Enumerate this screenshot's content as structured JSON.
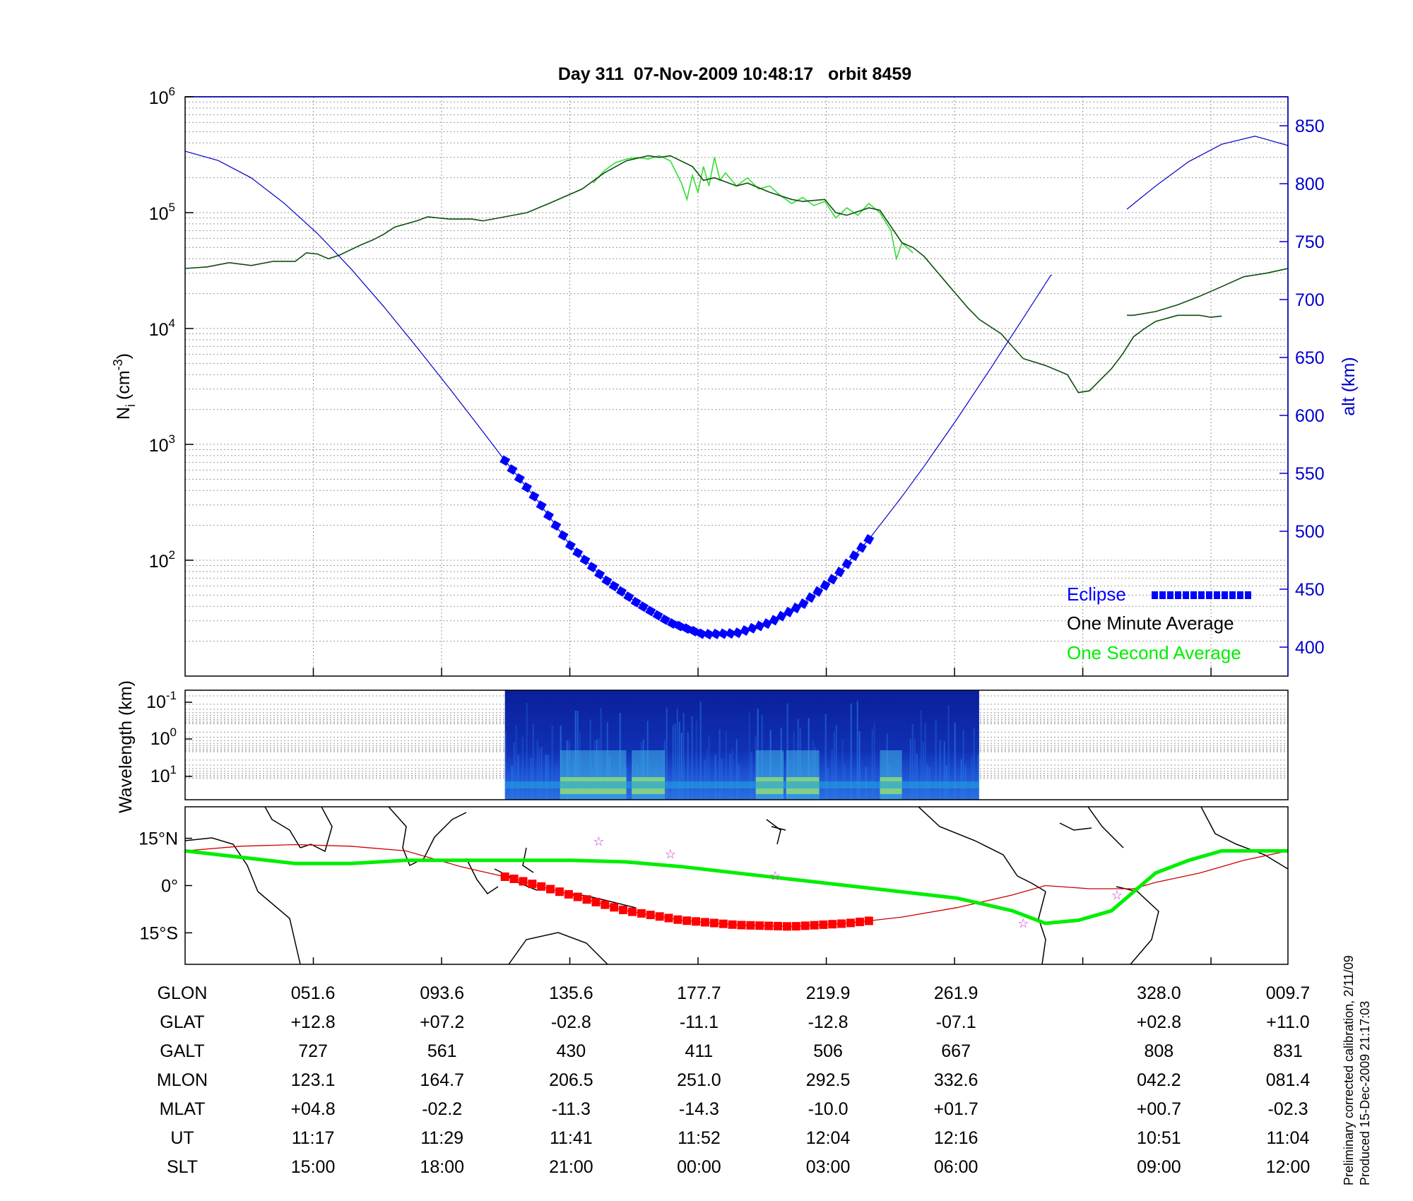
{
  "title": "Day 311  07-Nov-2009 10:48:17   orbit 8459",
  "colors": {
    "altitude": "#0000cc",
    "density_minute": "#0d4d0d",
    "density_second": "#33dd33",
    "eclipse": "#0000ff",
    "track": "#00ee00",
    "track_eclipse": "#ff0000",
    "track_line": "#cc0000",
    "stars": "#cc33cc"
  },
  "chart_data": [
    {
      "type": "line",
      "panel": "density_altitude",
      "ylabel_left": "N",
      "ylabel_left_sub": "i",
      "ylabel_left_unit": "(cm",
      "ylabel_left_unit_sup": "-3",
      "ylabel_left_unit_end": ")",
      "left_axis_scale": "log",
      "left_ylim": [
        10,
        1000000
      ],
      "left_ticks": [
        {
          "base": "10",
          "exp": "2",
          "value": 100
        },
        {
          "base": "10",
          "exp": "3",
          "value": 1000
        },
        {
          "base": "10",
          "exp": "4",
          "value": 10000
        },
        {
          "base": "10",
          "exp": "5",
          "value": 100000
        },
        {
          "base": "10",
          "exp": "6",
          "value": 1000000
        }
      ],
      "ylabel_right": "alt (km)",
      "right_ylim": [
        375,
        875
      ],
      "right_ticks": [
        400,
        450,
        500,
        550,
        600,
        650,
        700,
        750,
        800,
        850
      ],
      "xlim": [
        0,
        1
      ],
      "grid": true,
      "legend_position": "bottom-right",
      "legend": [
        {
          "label": "Eclipse",
          "color": "#0000ff"
        },
        {
          "label": "One Minute Average",
          "color": "#000000"
        },
        {
          "label": "One Second Average",
          "color": "#00ee00"
        }
      ],
      "series": [
        {
          "name": "alt (km)",
          "axis": "right",
          "segments": [
            [
              [
                0,
                828
              ],
              [
                0.03,
                820
              ],
              [
                0.06,
                805
              ],
              [
                0.09,
                783
              ],
              [
                0.12,
                757
              ],
              [
                0.15,
                727
              ],
              [
                0.18,
                694
              ],
              [
                0.21,
                659
              ],
              [
                0.24,
                623
              ],
              [
                0.27,
                586
              ],
              [
                0.29,
                561
              ],
              [
                0.32,
                526
              ],
              [
                0.35,
                487
              ],
              [
                0.38,
                459
              ],
              [
                0.41,
                438
              ],
              [
                0.44,
                421
              ],
              [
                0.47,
                411
              ],
              [
                0.5,
                412
              ],
              [
                0.53,
                421
              ],
              [
                0.56,
                437
              ],
              [
                0.59,
                461
              ],
              [
                0.62,
                493
              ],
              [
                0.65,
                530
              ],
              [
                0.67,
                556
              ],
              [
                0.7,
                597
              ],
              [
                0.73,
                640
              ],
              [
                0.76,
                684
              ],
              [
                0.785,
                721
              ],
              [
                0.786,
                721
              ]
            ],
            [
              [
                0.854,
                778
              ],
              [
                0.88,
                798
              ],
              [
                0.91,
                819
              ],
              [
                0.94,
                834
              ],
              [
                0.97,
                841
              ],
              [
                1.0,
                833
              ]
            ]
          ]
        },
        {
          "name": "One Minute Average",
          "axis": "left",
          "segments": [
            [
              [
                0,
                33000
              ],
              [
                0.02,
                34000
              ],
              [
                0.04,
                37000
              ],
              [
                0.06,
                35000
              ],
              [
                0.08,
                38000
              ],
              [
                0.1,
                38000
              ],
              [
                0.11,
                45000
              ],
              [
                0.12,
                44000
              ],
              [
                0.13,
                40000
              ],
              [
                0.14,
                43000
              ],
              [
                0.16,
                53000
              ],
              [
                0.17,
                58000
              ],
              [
                0.18,
                65000
              ],
              [
                0.19,
                75000
              ],
              [
                0.21,
                85000
              ],
              [
                0.22,
                92000
              ],
              [
                0.24,
                88000
              ],
              [
                0.26,
                88000
              ],
              [
                0.27,
                85000
              ],
              [
                0.29,
                92000
              ],
              [
                0.31,
                100000
              ],
              [
                0.33,
                120000
              ],
              [
                0.36,
                160000
              ],
              [
                0.38,
                220000
              ],
              [
                0.4,
                280000
              ],
              [
                0.42,
                310000
              ],
              [
                0.43,
                300000
              ],
              [
                0.44,
                310000
              ],
              [
                0.46,
                250000
              ],
              [
                0.47,
                190000
              ],
              [
                0.48,
                200000
              ],
              [
                0.5,
                170000
              ],
              [
                0.51,
                180000
              ],
              [
                0.53,
                150000
              ],
              [
                0.55,
                130000
              ],
              [
                0.56,
                125000
              ],
              [
                0.58,
                130000
              ],
              [
                0.59,
                100000
              ],
              [
                0.6,
                95000
              ],
              [
                0.62,
                110000
              ],
              [
                0.63,
                105000
              ],
              [
                0.65,
                55000
              ],
              [
                0.66,
                50000
              ],
              [
                0.67,
                42000
              ],
              [
                0.69,
                25000
              ],
              [
                0.71,
                15000
              ],
              [
                0.72,
                12000
              ],
              [
                0.74,
                9000
              ],
              [
                0.75,
                7000
              ],
              [
                0.76,
                5500
              ],
              [
                0.78,
                4800
              ],
              [
                0.8,
                4000
              ],
              [
                0.81,
                2800
              ],
              [
                0.82,
                2900
              ],
              [
                0.84,
                4500
              ],
              [
                0.85,
                6000
              ],
              [
                0.86,
                8500
              ],
              [
                0.87,
                10000
              ],
              [
                0.88,
                11500
              ],
              [
                0.9,
                13000
              ],
              [
                0.92,
                13000
              ],
              [
                0.93,
                12500
              ],
              [
                0.94,
                12800
              ]
            ],
            [
              [
                0.854,
                13000
              ],
              [
                0.86,
                13000
              ],
              [
                0.88,
                14000
              ],
              [
                0.9,
                16000
              ],
              [
                0.92,
                19000
              ],
              [
                0.94,
                23000
              ],
              [
                0.96,
                28000
              ],
              [
                0.98,
                30000
              ],
              [
                1.0,
                33000
              ]
            ]
          ]
        },
        {
          "name": "One Second Average",
          "axis": "left",
          "segments": [
            [
              [
                0.37,
                180000
              ],
              [
                0.38,
                230000
              ],
              [
                0.39,
                270000
              ],
              [
                0.4,
                290000
              ],
              [
                0.41,
                300000
              ],
              [
                0.42,
                290000
              ],
              [
                0.43,
                310000
              ],
              [
                0.44,
                280000
              ],
              [
                0.45,
                180000
              ],
              [
                0.455,
                130000
              ],
              [
                0.46,
                210000
              ],
              [
                0.465,
                150000
              ],
              [
                0.47,
                250000
              ],
              [
                0.475,
                170000
              ],
              [
                0.48,
                300000
              ],
              [
                0.485,
                190000
              ],
              [
                0.49,
                220000
              ],
              [
                0.5,
                170000
              ],
              [
                0.51,
                200000
              ],
              [
                0.52,
                160000
              ],
              [
                0.53,
                170000
              ],
              [
                0.54,
                140000
              ],
              [
                0.55,
                120000
              ],
              [
                0.56,
                135000
              ],
              [
                0.57,
                115000
              ],
              [
                0.58,
                125000
              ],
              [
                0.59,
                90000
              ],
              [
                0.6,
                110000
              ],
              [
                0.61,
                95000
              ],
              [
                0.62,
                120000
              ],
              [
                0.63,
                100000
              ],
              [
                0.64,
                70000
              ],
              [
                0.645,
                40000
              ],
              [
                0.65,
                55000
              ],
              [
                0.66,
                45000
              ]
            ]
          ]
        }
      ],
      "eclipse": {
        "x_start": 0.29,
        "x_end": 0.62
      }
    },
    {
      "type": "heatmap",
      "panel": "wavelength_spectrogram",
      "ylabel": "Wavelength (km)",
      "y_scale": "log",
      "yticks": [
        {
          "base": "10",
          "exp": "-1"
        },
        {
          "base": "10",
          "exp": "0"
        },
        {
          "base": "10",
          "exp": "1"
        }
      ],
      "x_start": 0.29,
      "x_end": 0.72
    },
    {
      "type": "line",
      "panel": "ground_track_map",
      "ytick_labels": [
        "15°N",
        "0°",
        "15°S"
      ],
      "yticks": [
        15,
        0,
        -15
      ],
      "ylim": [
        -25,
        25
      ],
      "series": [
        {
          "name": "ground track",
          "points": [
            [
              0,
              11
            ],
            [
              0.05,
              9
            ],
            [
              0.1,
              7
            ],
            [
              0.15,
              7
            ],
            [
              0.2,
              8
            ],
            [
              0.25,
              8
            ],
            [
              0.3,
              8
            ],
            [
              0.35,
              8
            ],
            [
              0.4,
              7.5
            ],
            [
              0.45,
              6
            ],
            [
              0.5,
              4
            ],
            [
              0.55,
              2
            ],
            [
              0.6,
              0
            ],
            [
              0.65,
              -2
            ],
            [
              0.7,
              -4
            ],
            [
              0.75,
              -8
            ],
            [
              0.78,
              -12
            ],
            [
              0.81,
              -11
            ],
            [
              0.84,
              -8
            ],
            [
              0.86,
              -2
            ],
            [
              0.88,
              4
            ],
            [
              0.91,
              8
            ],
            [
              0.94,
              11
            ],
            [
              0.97,
              11
            ],
            [
              1.0,
              11
            ]
          ]
        },
        {
          "name": "subsatellite path",
          "points": [
            [
              0,
              11
            ],
            [
              0.05,
              12.5
            ],
            [
              0.1,
              13
            ],
            [
              0.15,
              12.5
            ],
            [
              0.2,
              11
            ],
            [
              0.25,
              6
            ],
            [
              0.3,
              2
            ],
            [
              0.35,
              -3
            ],
            [
              0.4,
              -8
            ],
            [
              0.45,
              -11
            ],
            [
              0.5,
              -12.5
            ],
            [
              0.55,
              -13
            ],
            [
              0.6,
              -12
            ],
            [
              0.65,
              -10
            ],
            [
              0.7,
              -7
            ],
            [
              0.75,
              -3
            ],
            [
              0.78,
              0
            ],
            [
              0.82,
              -1
            ],
            [
              0.86,
              -1
            ],
            [
              0.88,
              1
            ],
            [
              0.92,
              4
            ],
            [
              0.96,
              8
            ],
            [
              1.0,
              11
            ]
          ]
        }
      ],
      "stars": [
        [
          0.375,
          14
        ],
        [
          0.44,
          10
        ],
        [
          0.535,
          3
        ],
        [
          0.76,
          -12
        ],
        [
          0.845,
          -3
        ]
      ]
    },
    {
      "type": "table",
      "panel": "orbit_positions",
      "row_labels": [
        "GLON",
        "GLAT",
        "GALT",
        "MLON",
        "MLAT",
        "UT",
        "SLT"
      ],
      "columns": [
        {
          "x": 0.116,
          "values": [
            "051.6",
            "+12.8",
            "727",
            "123.1",
            "+04.8",
            "11:17",
            "15:00"
          ]
        },
        {
          "x": 0.233,
          "values": [
            "093.6",
            "+07.2",
            "561",
            "164.7",
            "-02.2",
            "11:29",
            "18:00"
          ]
        },
        {
          "x": 0.35,
          "values": [
            "135.6",
            "-02.8",
            "430",
            "206.5",
            "-11.3",
            "11:41",
            "21:00"
          ]
        },
        {
          "x": 0.466,
          "values": [
            "177.7",
            "-11.1",
            "411",
            "251.0",
            "-14.3",
            "11:52",
            "00:00"
          ]
        },
        {
          "x": 0.583,
          "values": [
            "219.9",
            "-12.8",
            "506",
            "292.5",
            "-10.0",
            "12:04",
            "03:00"
          ]
        },
        {
          "x": 0.699,
          "values": [
            "261.9",
            "-07.1",
            "667",
            "332.6",
            "+01.7",
            "12:16",
            "06:00"
          ]
        },
        {
          "x": 0.883,
          "values": [
            "328.0",
            "+02.8",
            "808",
            "042.2",
            "+00.7",
            "10:51",
            "09:00"
          ]
        },
        {
          "x": 1.0,
          "values": [
            "009.7",
            "+11.0",
            "831",
            "081.4",
            "-02.3",
            "11:04",
            "12:00"
          ]
        }
      ]
    }
  ],
  "footnotes": [
    "Preliminary corrected calibration, 2/11/09",
    "Produced 15-Dec-2009 21:17:03"
  ]
}
